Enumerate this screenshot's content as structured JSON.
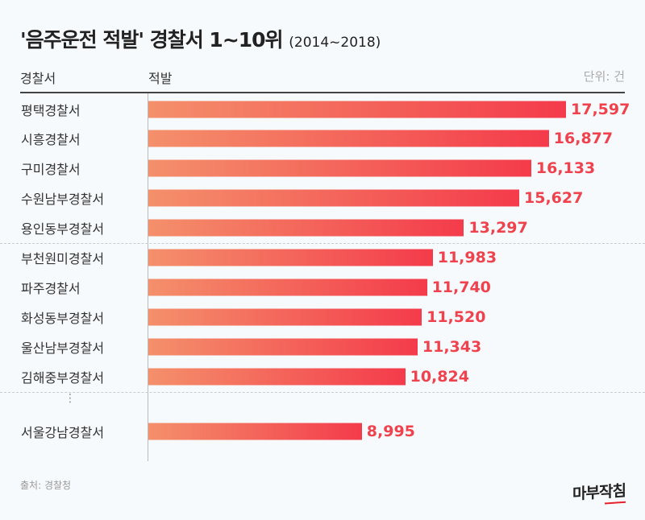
{
  "title": "'음주운전 적발' 경찰서 1~10위",
  "subtitle": "(2014~2018)",
  "source": "출처: 경찰청",
  "logo": "마부작침",
  "chart_data": {
    "type": "bar",
    "orientation": "horizontal",
    "column_headers": {
      "category": "경찰서",
      "value": "적발"
    },
    "unit": "단위: 건",
    "categories": [
      "평택경찰서",
      "시흥경찰서",
      "구미경찰서",
      "수원남부경찰서",
      "용인동부경찰서",
      "부천원미경찰서",
      "파주경찰서",
      "화성동부경찰서",
      "울산남부경찰서",
      "김해중부경찰서",
      "서울강남경찰서"
    ],
    "values": [
      17597,
      16877,
      16133,
      15627,
      13297,
      11983,
      11740,
      11520,
      11343,
      10824,
      8995
    ],
    "value_labels": [
      "17,597",
      "16,877",
      "16,133",
      "15,627",
      "13,297",
      "11,983",
      "11,740",
      "11,520",
      "11,343",
      "10,824",
      "8,995"
    ],
    "ellipsis": "⋮",
    "colors": {
      "bar_start": "#f4906b",
      "bar_end": "#f43b4b",
      "value_text": "#f0424d"
    }
  }
}
